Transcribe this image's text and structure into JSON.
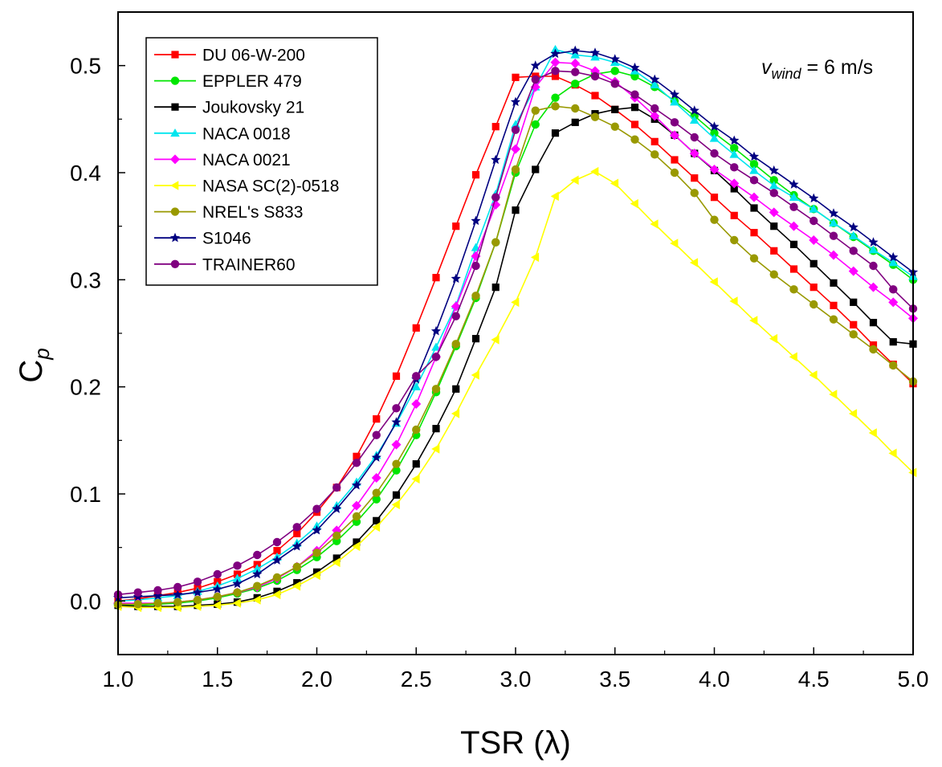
{
  "chart_data": {
    "type": "line",
    "title": "",
    "xlabel": "TSR (λ)",
    "ylabel": {
      "main": "C",
      "sub": "p"
    },
    "xlim": [
      1.0,
      5.0
    ],
    "ylim": [
      -0.05,
      0.55
    ],
    "xticks": [
      1.0,
      1.5,
      2.0,
      2.5,
      3.0,
      3.5,
      4.0,
      4.5,
      5.0
    ],
    "yticks": [
      0.0,
      0.1,
      0.2,
      0.3,
      0.4,
      0.5
    ],
    "xtick_labels": [
      "1.0",
      "1.5",
      "2.0",
      "2.5",
      "3.0",
      "3.5",
      "4.0",
      "4.5",
      "5.0"
    ],
    "ytick_labels": [
      "0.0",
      "0.1",
      "0.2",
      "0.3",
      "0.4",
      "0.5"
    ],
    "grid": false,
    "legend_position": "top-left",
    "annotation": {
      "text_v": "v",
      "text_sub": "wind",
      "text_rest": " = 6 m/s",
      "position": "top-right"
    },
    "x": [
      1.0,
      1.1,
      1.2,
      1.3,
      1.4,
      1.5,
      1.6,
      1.7,
      1.8,
      1.9,
      2.0,
      2.1,
      2.2,
      2.3,
      2.4,
      2.5,
      2.6,
      2.7,
      2.8,
      2.9,
      3.0,
      3.1,
      3.2,
      3.3,
      3.4,
      3.5,
      3.6,
      3.7,
      3.8,
      3.9,
      4.0,
      4.1,
      4.2,
      4.3,
      4.4,
      4.5,
      4.6,
      4.7,
      4.8,
      4.9,
      5.0
    ],
    "series": [
      {
        "name": "DU 06-W-200",
        "color": "#ff0000",
        "marker": "square",
        "values": [
          0.0,
          0.002,
          0.005,
          0.008,
          0.012,
          0.018,
          0.025,
          0.034,
          0.047,
          0.063,
          0.083,
          0.106,
          0.135,
          0.17,
          0.21,
          0.255,
          0.302,
          0.35,
          0.398,
          0.443,
          0.489,
          0.49,
          0.49,
          0.482,
          0.472,
          0.459,
          0.445,
          0.429,
          0.412,
          0.395,
          0.377,
          0.36,
          0.344,
          0.327,
          0.31,
          0.293,
          0.276,
          0.258,
          0.239,
          0.221,
          0.203
        ]
      },
      {
        "name": "EPPLER 479",
        "color": "#00e600",
        "marker": "circle",
        "values": [
          -0.004,
          -0.004,
          -0.003,
          -0.002,
          0.0,
          0.003,
          0.007,
          0.012,
          0.019,
          0.029,
          0.041,
          0.056,
          0.074,
          0.095,
          0.122,
          0.155,
          0.195,
          0.238,
          0.283,
          0.335,
          0.4,
          0.445,
          0.47,
          0.483,
          0.492,
          0.495,
          0.49,
          0.48,
          0.467,
          0.453,
          0.437,
          0.423,
          0.408,
          0.393,
          0.379,
          0.366,
          0.353,
          0.34,
          0.327,
          0.314,
          0.3
        ]
      },
      {
        "name": "Joukovsky 21",
        "color": "#000000",
        "marker": "square",
        "values": [
          -0.004,
          -0.005,
          -0.005,
          -0.005,
          -0.004,
          -0.003,
          -0.001,
          0.003,
          0.009,
          0.017,
          0.027,
          0.04,
          0.055,
          0.075,
          0.099,
          0.128,
          0.161,
          0.198,
          0.245,
          0.293,
          0.365,
          0.403,
          0.437,
          0.447,
          0.455,
          0.459,
          0.461,
          0.45,
          0.435,
          0.418,
          0.402,
          0.385,
          0.367,
          0.35,
          0.333,
          0.315,
          0.297,
          0.279,
          0.26,
          0.242,
          0.24
        ]
      },
      {
        "name": "NACA 0018",
        "color": "#00e5ee",
        "marker": "triangle-up",
        "values": [
          0.0,
          0.001,
          0.003,
          0.005,
          0.009,
          0.014,
          0.021,
          0.03,
          0.041,
          0.054,
          0.07,
          0.089,
          0.111,
          0.136,
          0.166,
          0.2,
          0.237,
          0.276,
          0.33,
          0.38,
          0.445,
          0.48,
          0.515,
          0.51,
          0.508,
          0.503,
          0.495,
          0.482,
          0.466,
          0.449,
          0.432,
          0.417,
          0.402,
          0.388,
          0.377,
          0.366,
          0.353,
          0.341,
          0.328,
          0.316,
          0.303
        ]
      },
      {
        "name": "NACA 0021",
        "color": "#ff00ff",
        "marker": "diamond",
        "values": [
          -0.002,
          -0.002,
          -0.002,
          -0.001,
          0.001,
          0.004,
          0.008,
          0.013,
          0.021,
          0.032,
          0.047,
          0.066,
          0.089,
          0.115,
          0.146,
          0.184,
          0.228,
          0.275,
          0.322,
          0.37,
          0.422,
          0.48,
          0.503,
          0.502,
          0.495,
          0.485,
          0.47,
          0.453,
          0.435,
          0.418,
          0.403,
          0.39,
          0.377,
          0.363,
          0.35,
          0.337,
          0.323,
          0.308,
          0.293,
          0.279,
          0.264
        ]
      },
      {
        "name": "NASA SC(2)-0518",
        "color": "#ffff00",
        "marker": "triangle-left",
        "values": [
          -0.005,
          -0.006,
          -0.006,
          -0.006,
          -0.005,
          -0.004,
          -0.002,
          0.001,
          0.006,
          0.014,
          0.024,
          0.036,
          0.051,
          0.069,
          0.09,
          0.114,
          0.142,
          0.175,
          0.211,
          0.244,
          0.279,
          0.321,
          0.378,
          0.393,
          0.401,
          0.39,
          0.371,
          0.352,
          0.334,
          0.316,
          0.298,
          0.28,
          0.262,
          0.245,
          0.228,
          0.211,
          0.193,
          0.175,
          0.157,
          0.138,
          0.12
        ]
      },
      {
        "name": "NREL's S833",
        "color": "#999900",
        "marker": "circle",
        "values": [
          -0.003,
          -0.003,
          -0.002,
          -0.001,
          0.001,
          0.004,
          0.008,
          0.014,
          0.022,
          0.032,
          0.045,
          0.061,
          0.079,
          0.101,
          0.128,
          0.16,
          0.198,
          0.24,
          0.285,
          0.335,
          0.403,
          0.458,
          0.462,
          0.46,
          0.452,
          0.443,
          0.431,
          0.417,
          0.4,
          0.381,
          0.356,
          0.337,
          0.32,
          0.305,
          0.291,
          0.277,
          0.263,
          0.249,
          0.235,
          0.22,
          0.205
        ]
      },
      {
        "name": "S1046",
        "color": "#000080",
        "marker": "star",
        "values": [
          0.003,
          0.004,
          0.005,
          0.006,
          0.008,
          0.011,
          0.016,
          0.025,
          0.038,
          0.051,
          0.066,
          0.086,
          0.108,
          0.134,
          0.167,
          0.207,
          0.252,
          0.301,
          0.355,
          0.412,
          0.466,
          0.5,
          0.511,
          0.514,
          0.512,
          0.506,
          0.498,
          0.487,
          0.473,
          0.458,
          0.443,
          0.43,
          0.415,
          0.402,
          0.389,
          0.376,
          0.362,
          0.349,
          0.335,
          0.321,
          0.307
        ]
      },
      {
        "name": "TRAINER60",
        "color": "#800080",
        "marker": "circle",
        "values": [
          0.006,
          0.008,
          0.01,
          0.013,
          0.018,
          0.025,
          0.033,
          0.043,
          0.055,
          0.069,
          0.086,
          0.106,
          0.129,
          0.155,
          0.18,
          0.21,
          0.228,
          0.266,
          0.313,
          0.377,
          0.44,
          0.487,
          0.495,
          0.494,
          0.49,
          0.483,
          0.473,
          0.46,
          0.447,
          0.433,
          0.418,
          0.405,
          0.393,
          0.381,
          0.368,
          0.355,
          0.341,
          0.327,
          0.313,
          0.291,
          0.273
        ]
      }
    ]
  }
}
